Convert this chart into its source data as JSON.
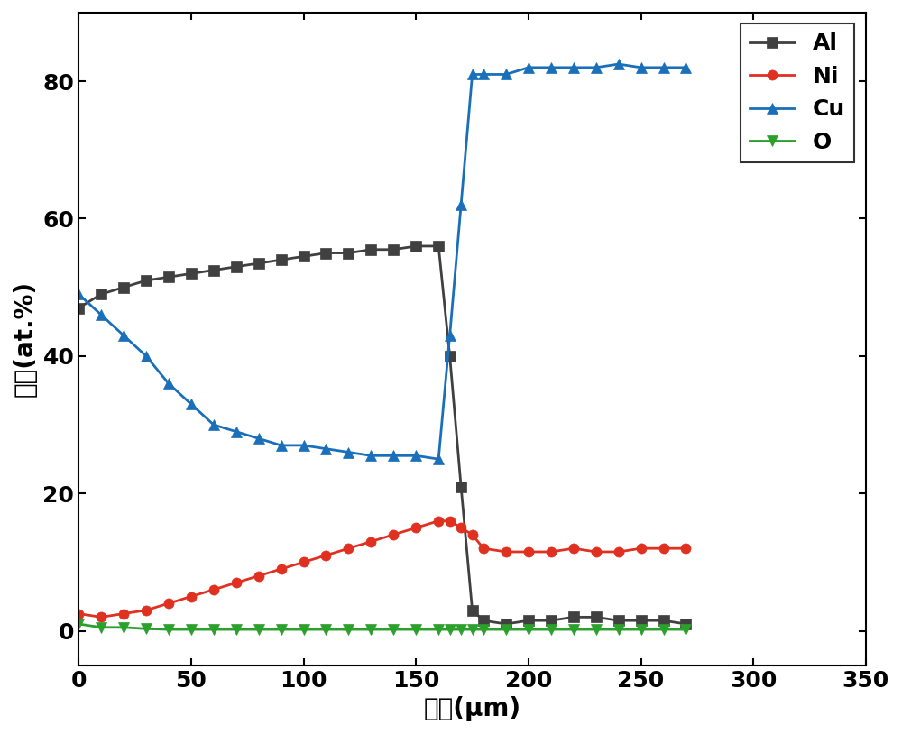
{
  "Al": {
    "x": [
      0,
      10,
      20,
      30,
      40,
      50,
      60,
      70,
      80,
      90,
      100,
      110,
      120,
      130,
      140,
      150,
      160,
      165,
      170,
      175,
      180,
      190,
      200,
      210,
      220,
      230,
      240,
      250,
      260,
      270
    ],
    "y": [
      47,
      49,
      50,
      51,
      51.5,
      52,
      52.5,
      53,
      53.5,
      54,
      54.5,
      55,
      55,
      55.5,
      55.5,
      56,
      56,
      40,
      21,
      3,
      1.5,
      1,
      1.5,
      1.5,
      2,
      2,
      1.5,
      1.5,
      1.5,
      1
    ],
    "color": "#404040",
    "marker": "s",
    "label": "Al"
  },
  "Ni": {
    "x": [
      0,
      10,
      20,
      30,
      40,
      50,
      60,
      70,
      80,
      90,
      100,
      110,
      120,
      130,
      140,
      150,
      160,
      165,
      170,
      175,
      180,
      190,
      200,
      210,
      220,
      230,
      240,
      250,
      260,
      270
    ],
    "y": [
      2.5,
      2,
      2.5,
      3,
      4,
      5,
      6,
      7,
      8,
      9,
      10,
      11,
      12,
      13,
      14,
      15,
      16,
      16,
      15,
      14,
      12,
      11.5,
      11.5,
      11.5,
      12,
      11.5,
      11.5,
      12,
      12,
      12
    ],
    "color": "#e03020",
    "marker": "o",
    "label": "Ni"
  },
  "Cu": {
    "x": [
      0,
      10,
      20,
      30,
      40,
      50,
      60,
      70,
      80,
      90,
      100,
      110,
      120,
      130,
      140,
      150,
      160,
      165,
      170,
      175,
      180,
      190,
      200,
      210,
      220,
      230,
      240,
      250,
      260,
      270
    ],
    "y": [
      49,
      46,
      43,
      40,
      36,
      33,
      30,
      29,
      28,
      27,
      27,
      26.5,
      26,
      25.5,
      25.5,
      25.5,
      25,
      43,
      62,
      81,
      81,
      81,
      82,
      82,
      82,
      82,
      82.5,
      82,
      82,
      82
    ],
    "color": "#1a6fba",
    "marker": "^",
    "label": "Cu"
  },
  "O": {
    "x": [
      0,
      10,
      20,
      30,
      40,
      50,
      60,
      70,
      80,
      90,
      100,
      110,
      120,
      130,
      140,
      150,
      160,
      165,
      170,
      175,
      180,
      190,
      200,
      210,
      220,
      230,
      240,
      250,
      260,
      270
    ],
    "y": [
      1,
      0.5,
      0.5,
      0.3,
      0.2,
      0.2,
      0.2,
      0.2,
      0.2,
      0.2,
      0.2,
      0.2,
      0.2,
      0.2,
      0.2,
      0.2,
      0.2,
      0.2,
      0.2,
      0.2,
      0.2,
      0.2,
      0.2,
      0.2,
      0.2,
      0.2,
      0.2,
      0.2,
      0.2,
      0.2
    ],
    "color": "#2ca02c",
    "marker": "v",
    "label": "O"
  },
  "xlabel_cn": "深度",
  "xlabel_unit": "(μm)",
  "ylabel_cn": "含量",
  "ylabel_unit": "(at.%)",
  "xlim": [
    0,
    350
  ],
  "ylim": [
    -5,
    90
  ],
  "xticks": [
    0,
    50,
    100,
    150,
    200,
    250,
    300,
    350
  ],
  "yticks": [
    0,
    20,
    40,
    60,
    80
  ],
  "linewidth": 2.0,
  "markersize": 8,
  "legend_fontsize": 18,
  "axis_label_fontsize": 20,
  "tick_fontsize": 18,
  "background_color": "#ffffff"
}
